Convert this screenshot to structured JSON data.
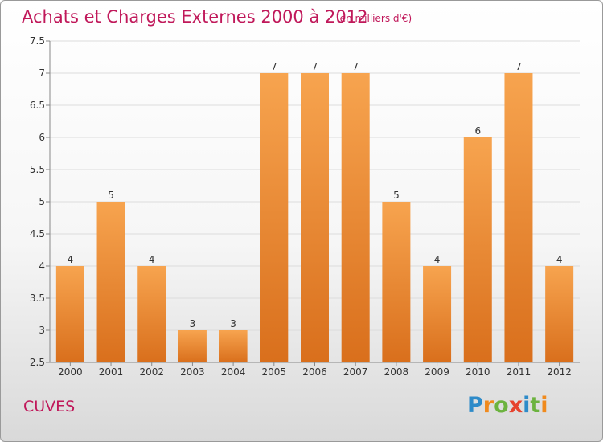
{
  "chart_data": {
    "type": "bar",
    "title": "Achats et Charges Externes 2000 à 2012",
    "subtitle": "(en milliers d'€)",
    "categories": [
      "2000",
      "2001",
      "2002",
      "2003",
      "2004",
      "2005",
      "2006",
      "2007",
      "2008",
      "2009",
      "2010",
      "2011",
      "2012"
    ],
    "values": [
      4,
      5,
      4,
      3,
      3,
      7,
      7,
      7,
      5,
      4,
      6,
      7,
      4
    ],
    "value_labels": [
      "4",
      "5",
      "4",
      "3",
      "3",
      "7",
      "7",
      "7",
      "5",
      "4",
      "6",
      "7",
      "4"
    ],
    "ylim": [
      2.5,
      7.5
    ],
    "yticks": [
      "2.5",
      "3",
      "3.5",
      "4",
      "4.5",
      "5",
      "5.5",
      "6",
      "6.5",
      "7",
      "7.5"
    ],
    "ytick_values": [
      2.5,
      3,
      3.5,
      4,
      4.5,
      5,
      5.5,
      6,
      6.5,
      7,
      7.5
    ],
    "xlabel": "",
    "ylabel": "",
    "grid": true,
    "colors": {
      "bar_top": "#f7a44f",
      "bar_bottom": "#d96f1c",
      "title": "#c0185a"
    }
  },
  "footer": {
    "town": "CUVES",
    "logo_letters": [
      "P",
      "r",
      "o",
      "x",
      "i",
      "t",
      "i"
    ],
    "logo_colors": [
      "#2e8bc9",
      "#f08a1d",
      "#6cb33f",
      "#e6432e",
      "#2e8bc9",
      "#6cb33f",
      "#f08a1d"
    ]
  }
}
